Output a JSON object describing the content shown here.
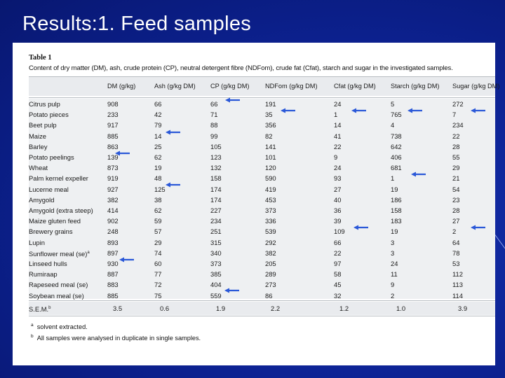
{
  "slide": {
    "title": "Results:1. Feed samples"
  },
  "table": {
    "label": "Table 1",
    "caption": "Content of dry matter (DM), ash, crude protein (CP), neutral detergent fibre (NDFom), crude fat (Cfat), starch and sugar in the investigated samples.",
    "columns": [
      "DM (g/kg)",
      "Ash (g/kg DM)",
      "CP (g/kg DM)",
      "NDFom (g/kg DM)",
      "Cfat (g/kg DM)",
      "Starch (g/kg DM)",
      "Sugar (g/kg DM)"
    ],
    "rows": [
      {
        "name": "Citrus pulp",
        "values": [
          "908",
          "66",
          "66",
          "191",
          "24",
          "5",
          "272"
        ]
      },
      {
        "name": "Potato pieces",
        "values": [
          "233",
          "42",
          "71",
          "35",
          "1",
          "765",
          "7"
        ]
      },
      {
        "name": "Beet pulp",
        "values": [
          "917",
          "79",
          "88",
          "356",
          "14",
          "4",
          "234"
        ]
      },
      {
        "name": "Maize",
        "values": [
          "885",
          "14",
          "99",
          "82",
          "41",
          "738",
          "22"
        ]
      },
      {
        "name": "Barley",
        "values": [
          "863",
          "25",
          "105",
          "141",
          "22",
          "642",
          "28"
        ]
      },
      {
        "name": "Potato peelings",
        "values": [
          "139",
          "62",
          "123",
          "101",
          "9",
          "406",
          "55"
        ]
      },
      {
        "name": "Wheat",
        "values": [
          "873",
          "19",
          "132",
          "120",
          "24",
          "681",
          "29"
        ]
      },
      {
        "name": "Palm kernel expeller",
        "values": [
          "919",
          "48",
          "158",
          "590",
          "93",
          "1",
          "21"
        ]
      },
      {
        "name": "Lucerne meal",
        "values": [
          "927",
          "125",
          "174",
          "419",
          "27",
          "19",
          "54"
        ]
      },
      {
        "name": "Amygold",
        "values": [
          "382",
          "38",
          "174",
          "453",
          "40",
          "186",
          "23"
        ]
      },
      {
        "name": "Amygold (extra steep)",
        "values": [
          "414",
          "62",
          "227",
          "373",
          "36",
          "158",
          "28"
        ]
      },
      {
        "name": "Maize gluten feed",
        "values": [
          "902",
          "59",
          "234",
          "336",
          "39",
          "183",
          "27"
        ]
      },
      {
        "name": "Brewery grains",
        "values": [
          "248",
          "57",
          "251",
          "539",
          "109",
          "19",
          "2"
        ]
      },
      {
        "name": "Lupin",
        "values": [
          "893",
          "29",
          "315",
          "292",
          "66",
          "3",
          "64"
        ]
      },
      {
        "name": "Sunflower meal (se)",
        "sup": "a",
        "values": [
          "897",
          "74",
          "340",
          "382",
          "22",
          "3",
          "78"
        ]
      },
      {
        "name": "Linseed hulls",
        "values": [
          "930",
          "60",
          "373",
          "205",
          "97",
          "24",
          "53"
        ]
      },
      {
        "name": "Rumiraap",
        "values": [
          "887",
          "77",
          "385",
          "289",
          "58",
          "11",
          "112"
        ]
      },
      {
        "name": "Rapeseed meal (se)",
        "values": [
          "883",
          "72",
          "404",
          "273",
          "45",
          "9",
          "113"
        ]
      },
      {
        "name": "Soybean meal (se)",
        "values": [
          "885",
          "75",
          "559",
          "86",
          "32",
          "2",
          "114"
        ]
      }
    ],
    "sem": {
      "name": "S.E.M.",
      "sup": "b",
      "values": [
        "3.5",
        "0.6",
        "1.9",
        "2.2",
        "1.2",
        "1.0",
        "3.9"
      ]
    },
    "footnotes": [
      {
        "mark": "a",
        "text": "solvent extracted."
      },
      {
        "mark": "b",
        "text": "All samples were analysed in duplicate in single samples."
      }
    ]
  },
  "colors": {
    "background": "#0c2190",
    "arrow": "#2a58d8",
    "panel": "#ffffff"
  }
}
